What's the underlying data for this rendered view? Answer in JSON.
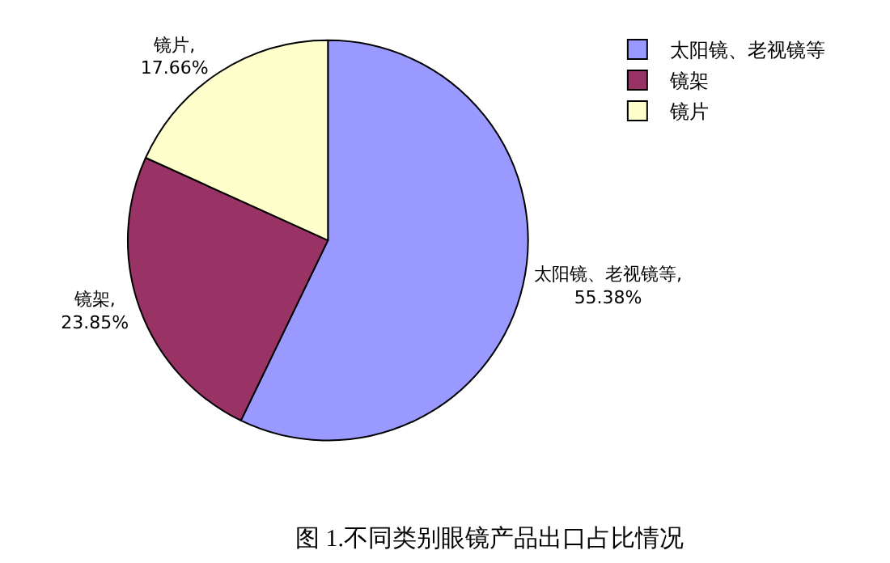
{
  "chart_data": {
    "type": "pie",
    "title": "图 1.不同类别眼镜产品出口占比情况",
    "categories": [
      "太阳镜、老视镜等",
      "镜架",
      "镜片"
    ],
    "values": [
      55.38,
      23.85,
      17.66
    ],
    "colors": [
      "#9999ff",
      "#993366",
      "#ffffcc"
    ],
    "value_labels": [
      "太阳镜、老视镜等,\n55.38%",
      "镜架,\n23.85%",
      "镜片,\n17.66%"
    ],
    "legend": "top right"
  }
}
